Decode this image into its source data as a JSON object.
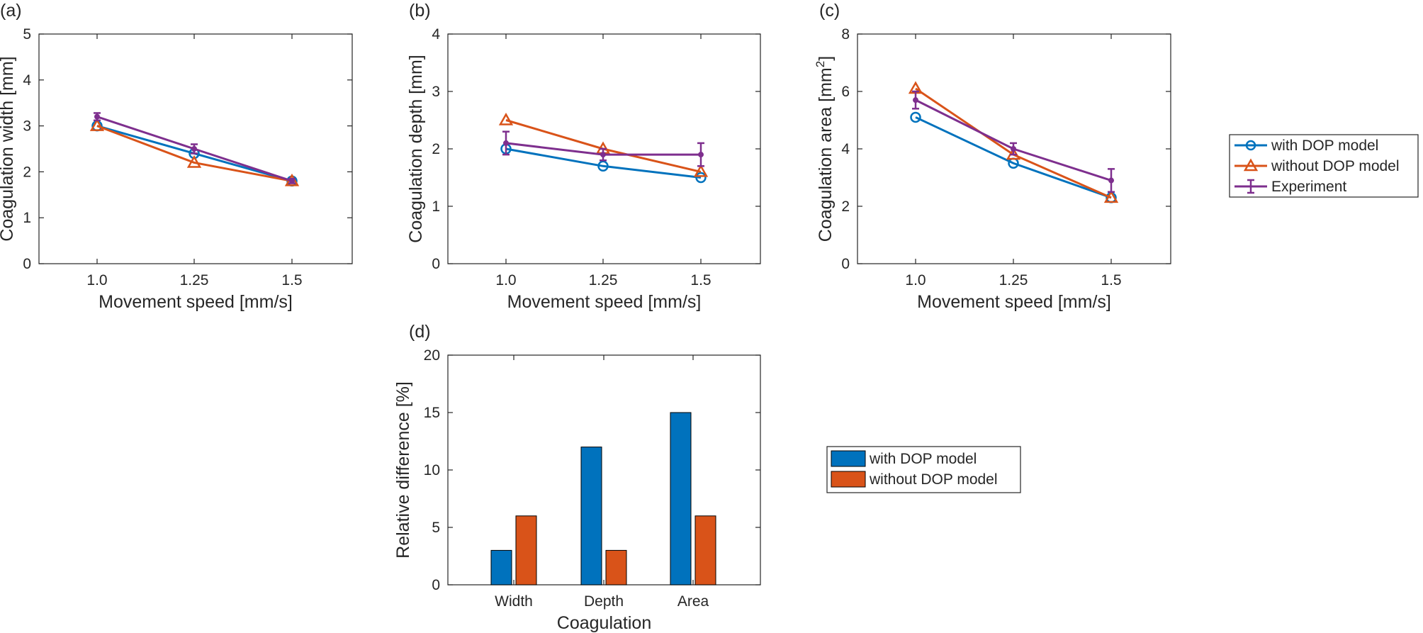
{
  "colors": {
    "with": "#0072BD",
    "without": "#D95319",
    "experiment": "#7E2F8E",
    "axis": "#262626",
    "legend_border": "#262626"
  },
  "legend": {
    "with_label": "with DOP model",
    "without_label": "without DOP model",
    "experiment_label": "Experiment"
  },
  "chart_data": [
    {
      "panel": "(a)",
      "type": "line",
      "categories": [
        "1.0",
        "1.25",
        "1.5"
      ],
      "xlabel": "Movement speed [mm/s]",
      "ylabel": "Coagulation width [mm]",
      "ylim": [
        0,
        5
      ],
      "yticks": [
        "0",
        "1",
        "2",
        "3",
        "4",
        "5"
      ],
      "series": [
        {
          "name": "with DOP model",
          "values": [
            3.0,
            2.4,
            1.8
          ]
        },
        {
          "name": "without DOP model",
          "values": [
            3.0,
            2.2,
            1.8
          ]
        },
        {
          "name": "Experiment",
          "values": [
            3.2,
            2.5,
            1.8
          ],
          "errors": [
            0.08,
            0.1,
            0.05
          ]
        }
      ]
    },
    {
      "panel": "(b)",
      "type": "line",
      "categories": [
        "1.0",
        "1.25",
        "1.5"
      ],
      "xlabel": "Movement speed [mm/s]",
      "ylabel": "Coagulation depth [mm]",
      "ylim": [
        0,
        4
      ],
      "yticks": [
        "0",
        "1",
        "2",
        "3",
        "4"
      ],
      "series": [
        {
          "name": "with DOP model",
          "values": [
            2.0,
            1.7,
            1.5
          ]
        },
        {
          "name": "without DOP model",
          "values": [
            2.5,
            2.0,
            1.6
          ]
        },
        {
          "name": "Experiment",
          "values": [
            2.1,
            1.9,
            1.9
          ],
          "errors": [
            0.2,
            0.1,
            0.2
          ]
        }
      ]
    },
    {
      "panel": "(c)",
      "type": "line",
      "categories": [
        "1.0",
        "1.25",
        "1.5"
      ],
      "xlabel": "Movement speed [mm/s]",
      "ylabel_main": "Coagulation area [mm",
      "ylabel_sup": "2",
      "ylabel_end": "]",
      "ylim": [
        0,
        8
      ],
      "yticks": [
        "0",
        "2",
        "4",
        "6",
        "8"
      ],
      "series": [
        {
          "name": "with DOP model",
          "values": [
            5.1,
            3.5,
            2.3
          ]
        },
        {
          "name": "without DOP model",
          "values": [
            6.1,
            3.8,
            2.3
          ]
        },
        {
          "name": "Experiment",
          "values": [
            5.7,
            4.0,
            2.9
          ],
          "errors": [
            0.3,
            0.2,
            0.4
          ]
        }
      ]
    },
    {
      "panel": "(d)",
      "type": "bar",
      "categories": [
        "Width",
        "Depth",
        "Area"
      ],
      "xlabel": "Coagulation",
      "ylabel": "Relative difference [%]",
      "ylim": [
        0,
        20
      ],
      "yticks": [
        "0",
        "5",
        "10",
        "15",
        "20"
      ],
      "series": [
        {
          "name": "with DOP model",
          "values": [
            3,
            12,
            15
          ]
        },
        {
          "name": "without DOP model",
          "values": [
            6,
            3,
            6
          ]
        }
      ]
    }
  ]
}
